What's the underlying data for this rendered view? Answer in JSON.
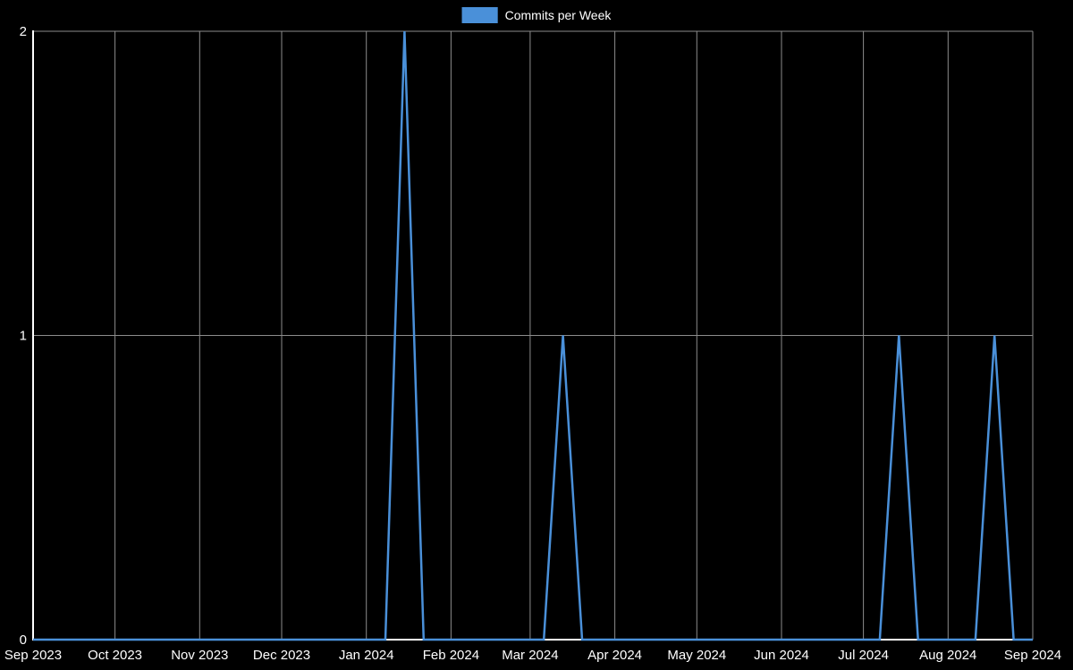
{
  "chart_data": {
    "type": "line",
    "title": "Commits per Week",
    "legend": {
      "label": "Commits per Week",
      "position": "top-center"
    },
    "x_range": [
      "2023-09-01",
      "2024-09-01"
    ],
    "x_ticks": [
      {
        "label": "Sep 2023",
        "date": "2023-09-01"
      },
      {
        "label": "Oct 2023",
        "date": "2023-10-01"
      },
      {
        "label": "Nov 2023",
        "date": "2023-11-01"
      },
      {
        "label": "Dec 2023",
        "date": "2023-12-01"
      },
      {
        "label": "Jan 2024",
        "date": "2024-01-01"
      },
      {
        "label": "Feb 2024",
        "date": "2024-02-01"
      },
      {
        "label": "Mar 2024",
        "date": "2024-03-01"
      },
      {
        "label": "Apr 2024",
        "date": "2024-04-01"
      },
      {
        "label": "May 2024",
        "date": "2024-05-01"
      },
      {
        "label": "Jun 2024",
        "date": "2024-06-01"
      },
      {
        "label": "Jul 2024",
        "date": "2024-07-01"
      },
      {
        "label": "Aug 2024",
        "date": "2024-08-01"
      },
      {
        "label": "Sep 2024",
        "date": "2024-09-01"
      }
    ],
    "y_ticks": [
      0,
      1,
      2
    ],
    "ylim": [
      0,
      2
    ],
    "grid": true,
    "series": [
      {
        "name": "Commits per Week",
        "color": "#4a90d9",
        "points": [
          [
            "2023-09-01",
            0
          ],
          [
            "2024-01-08",
            0
          ],
          [
            "2024-01-15",
            2
          ],
          [
            "2024-01-22",
            0
          ],
          [
            "2024-03-06",
            0
          ],
          [
            "2024-03-13",
            1
          ],
          [
            "2024-03-20",
            0
          ],
          [
            "2024-07-07",
            0
          ],
          [
            "2024-07-14",
            1
          ],
          [
            "2024-07-21",
            0
          ],
          [
            "2024-08-11",
            0
          ],
          [
            "2024-08-18",
            1
          ],
          [
            "2024-08-25",
            0
          ],
          [
            "2024-09-01",
            0
          ]
        ]
      }
    ],
    "colors": {
      "background": "#000000",
      "axis": "#ffffff",
      "grid": "#8c8c8c",
      "text": "#ffffff",
      "line": "#4a90d9"
    }
  }
}
